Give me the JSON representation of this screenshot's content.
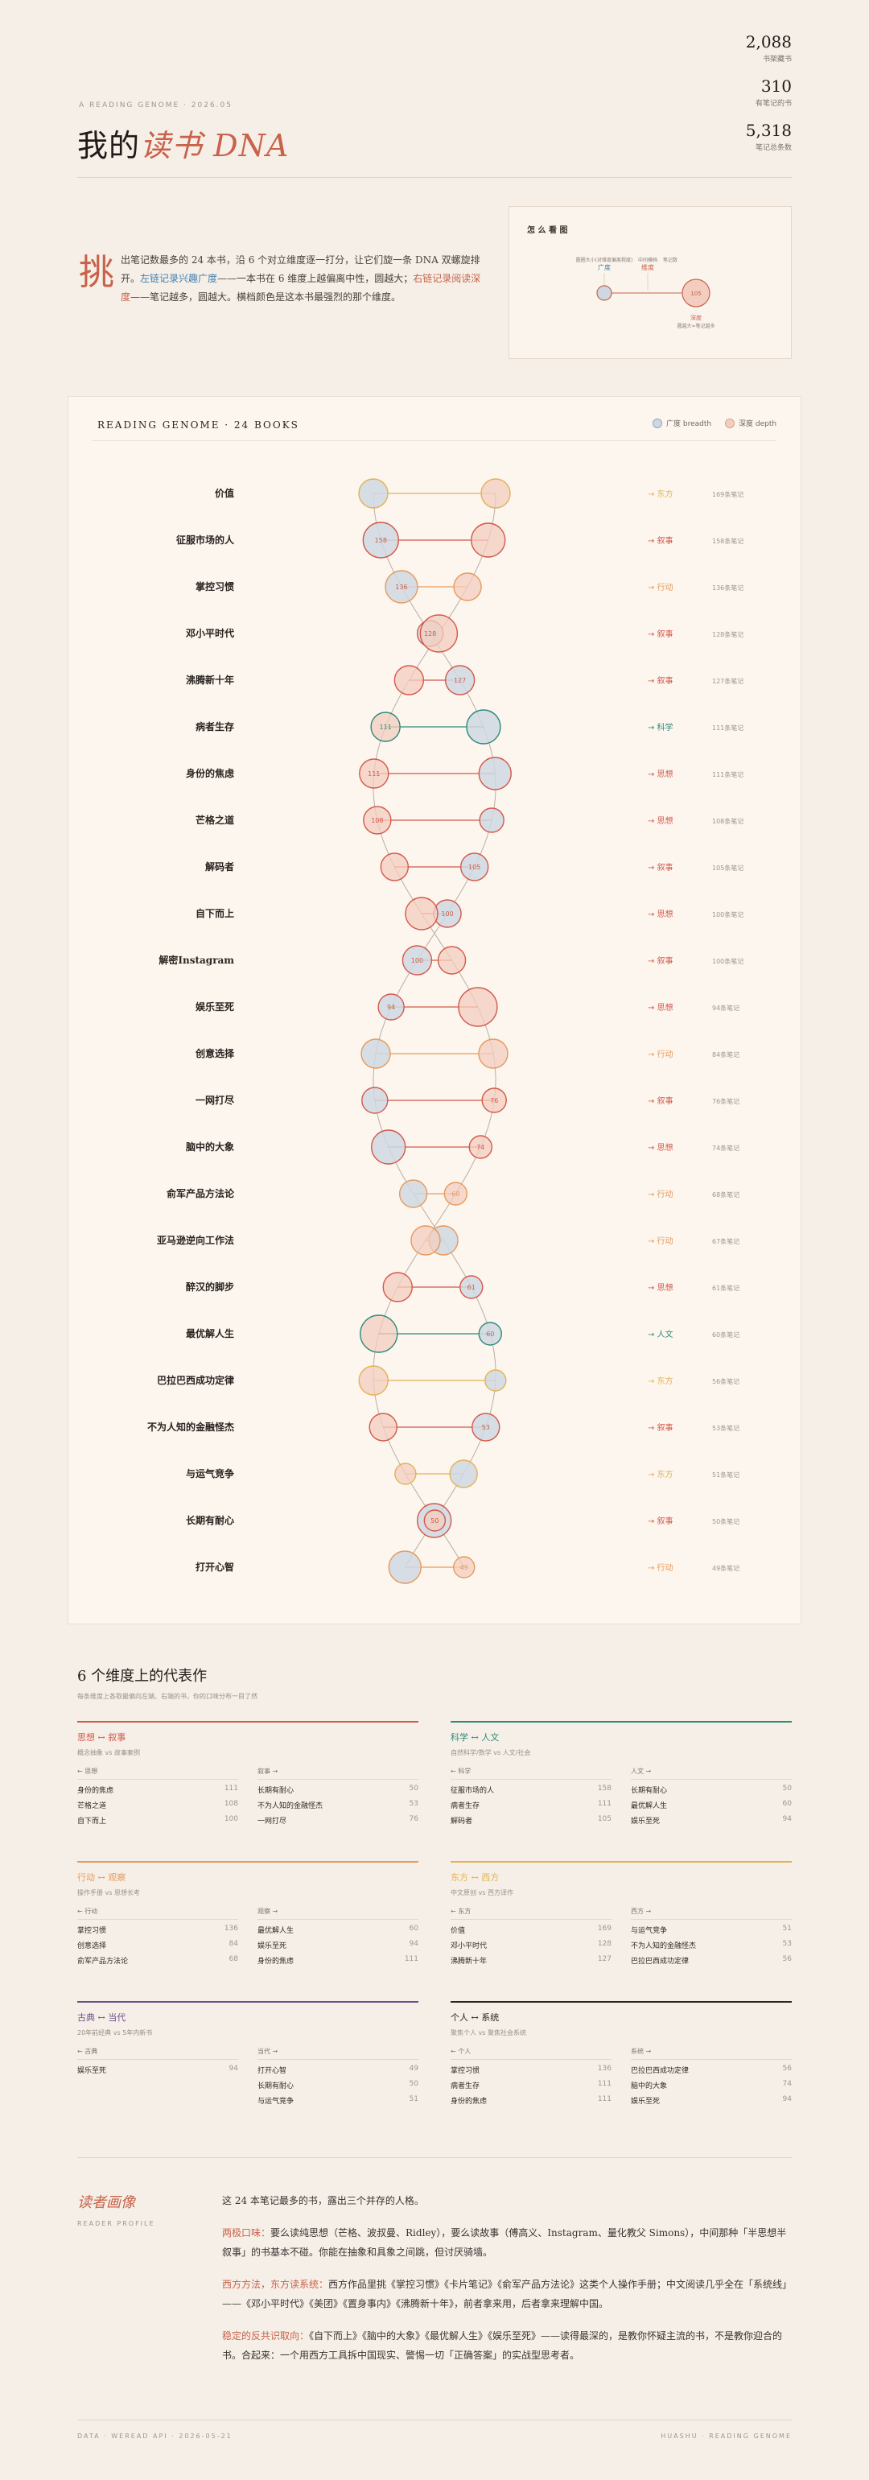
{
  "header": {
    "kicker": "A READING GENOME · 2026.05",
    "title_main": "我的",
    "title_accent": "读书",
    "title_latin": "DNA",
    "stats": [
      {
        "num": "2,088",
        "label": "书架藏书"
      },
      {
        "num": "310",
        "label": "有笔记的书"
      },
      {
        "num": "5,318",
        "label": "笔记总条数"
      }
    ]
  },
  "intro": {
    "dropcap": "挑",
    "p1": "出笔记数最多的 24 本书，沿 6 个对立维度逐一打分，让它们旋一条 DNA 双螺旋排开。",
    "blue": "左链记录兴趣广度",
    "p2": "——一本书在 6 维度上越偏离中性，圆越大；",
    "red": "右链记录阅读深度",
    "p3": "——笔记越多，圆越大。横档颜色是这本书最强烈的那个维度。"
  },
  "howto": {
    "title": "怎 么 看 图",
    "l1": "圆圈大小(对维度偏离程度)",
    "l1b": "广度",
    "l2": "中间横档",
    "l2b": "维度",
    "l3": "笔记数",
    "l4": "深度",
    "l5": "圆越大=笔记越多",
    "n": "105"
  },
  "genome": {
    "title": "READING GENOME · 24 BOOKS",
    "legend_breadth": "广度 breadth",
    "legend_depth": "深度 depth",
    "books": [
      {
        "name": "价值",
        "dim": "→ 东方",
        "notes": "169条笔记",
        "color": "#e3b253",
        "lr": 18,
        "rr": 18,
        "ln": "",
        "rn": ""
      },
      {
        "name": "征服市场的人",
        "dim": "→ 叙事",
        "notes": "158条笔记",
        "color": "#d5574a",
        "lr": 22,
        "rr": 21,
        "ln": "158",
        "rn": ""
      },
      {
        "name": "掌控习惯",
        "dim": "→ 行动",
        "notes": "136条笔记",
        "color": "#e8995a",
        "lr": 20,
        "rr": 17,
        "ln": "136",
        "rn": ""
      },
      {
        "name": "邓小平时代",
        "dim": "→ 叙事",
        "notes": "128条笔记",
        "color": "#d5574a",
        "lr": 16,
        "rr": 23,
        "ln": "128",
        "rn": ""
      },
      {
        "name": "沸腾新十年",
        "dim": "→ 叙事",
        "notes": "127条笔记",
        "color": "#d5574a",
        "lr": 18,
        "rr": 18,
        "ln": "127",
        "rn": ""
      },
      {
        "name": "病者生存",
        "dim": "→ 科学",
        "notes": "111条笔记",
        "color": "#2d8a7a",
        "lr": 21,
        "rr": 18,
        "ln": "",
        "rn": "111"
      },
      {
        "name": "身份的焦虑",
        "dim": "→ 思想",
        "notes": "111条笔记",
        "color": "#d5574a",
        "lr": 20,
        "rr": 18,
        "ln": "",
        "rn": "111"
      },
      {
        "name": "芒格之道",
        "dim": "→ 思想",
        "notes": "108条笔记",
        "color": "#d5574a",
        "lr": 15,
        "rr": 17,
        "ln": "",
        "rn": "108"
      },
      {
        "name": "解码者",
        "dim": "→ 叙事",
        "notes": "105条笔记",
        "color": "#d5574a",
        "lr": 17,
        "rr": 17,
        "ln": "105",
        "rn": ""
      },
      {
        "name": "自下而上",
        "dim": "→ 思想",
        "notes": "100条笔记",
        "color": "#d5574a",
        "lr": 17,
        "rr": 20,
        "ln": "100",
        "rn": ""
      },
      {
        "name": "解密Instagram",
        "dim": "→ 叙事",
        "notes": "100条笔记",
        "color": "#d5574a",
        "lr": 18,
        "rr": 17,
        "ln": "100",
        "rn": ""
      },
      {
        "name": "娱乐至死",
        "dim": "→ 思想",
        "notes": "94条笔记",
        "color": "#d5574a",
        "lr": 16,
        "rr": 24,
        "ln": "94",
        "rn": ""
      },
      {
        "name": "创意选择",
        "dim": "→ 行动",
        "notes": "84条笔记",
        "color": "#e8995a",
        "lr": 18,
        "rr": 18,
        "ln": "",
        "rn": ""
      },
      {
        "name": "一网打尽",
        "dim": "→ 叙事",
        "notes": "76条笔记",
        "color": "#d5574a",
        "lr": 16,
        "rr": 15,
        "ln": "",
        "rn": "76"
      },
      {
        "name": "脑中的大象",
        "dim": "→ 思想",
        "notes": "74条笔记",
        "color": "#d5574a",
        "lr": 21,
        "rr": 14,
        "ln": "",
        "rn": "74"
      },
      {
        "name": "俞军产品方法论",
        "dim": "→ 行动",
        "notes": "68条笔记",
        "color": "#e8995a",
        "lr": 17,
        "rr": 14,
        "ln": "",
        "rn": "68"
      },
      {
        "name": "亚马逊逆向工作法",
        "dim": "→ 行动",
        "notes": "67条笔记",
        "color": "#e8995a",
        "lr": 18,
        "rr": 18,
        "ln": "",
        "rn": ""
      },
      {
        "name": "醉汉的脚步",
        "dim": "→ 思想",
        "notes": "61条笔记",
        "color": "#d5574a",
        "lr": 14,
        "rr": 18,
        "ln": "61",
        "rn": ""
      },
      {
        "name": "最优解人生",
        "dim": "→ 人文",
        "notes": "60条笔记",
        "color": "#2d8a7a",
        "lr": 14,
        "rr": 23,
        "ln": "60",
        "rn": ""
      },
      {
        "name": "巴拉巴西成功定律",
        "dim": "→ 东方",
        "notes": "56条笔记",
        "color": "#e3b253",
        "lr": 13,
        "rr": 18,
        "ln": "",
        "rn": ""
      },
      {
        "name": "不为人知的金融怪杰",
        "dim": "→ 叙事",
        "notes": "53条笔记",
        "color": "#d5574a",
        "lr": 17,
        "rr": 17,
        "ln": "53",
        "rn": ""
      },
      {
        "name": "与运气竞争",
        "dim": "→ 东方",
        "notes": "51条笔记",
        "color": "#e3b253",
        "lr": 17,
        "rr": 13,
        "ln": "",
        "rn": ""
      },
      {
        "name": "长期有耐心",
        "dim": "→ 叙事",
        "notes": "50条笔记",
        "color": "#d5574a",
        "lr": 21,
        "rr": 13,
        "ln": "",
        "rn": "50"
      },
      {
        "name": "打开心智",
        "dim": "→ 行动",
        "notes": "49条笔记",
        "color": "#e8995a",
        "lr": 20,
        "rr": 13,
        "ln": "",
        "rn": "49"
      }
    ]
  },
  "dimensions": {
    "title": "6 个维度上的代表作",
    "subtitle": "每条维度上各取最偏向左端、右端的书，你的口味分布一目了然",
    "cards": [
      {
        "name": "思想 ↔ 叙事",
        "desc": "概念抽象 vs 故事案例",
        "color": "#d5574a",
        "lh": "← 思想",
        "rh": "叙事 →",
        "left": [
          [
            "身份的焦虑",
            "111"
          ],
          [
            "芒格之道",
            "108"
          ],
          [
            "自下而上",
            "100"
          ]
        ],
        "right": [
          [
            "长期有耐心",
            "50"
          ],
          [
            "不为人知的金融怪杰",
            "53"
          ],
          [
            "一网打尽",
            "76"
          ]
        ]
      },
      {
        "name": "科学 ↔ 人文",
        "desc": "自然科学/数学 vs 人文/社会",
        "color": "#2d8a7a",
        "lh": "← 科学",
        "rh": "人文 →",
        "left": [
          [
            "征服市场的人",
            "158"
          ],
          [
            "病者生存",
            "111"
          ],
          [
            "解码者",
            "105"
          ]
        ],
        "right": [
          [
            "长期有耐心",
            "50"
          ],
          [
            "最优解人生",
            "60"
          ],
          [
            "娱乐至死",
            "94"
          ]
        ]
      },
      {
        "name": "行动 ↔ 观察",
        "desc": "操作手册 vs 思想长考",
        "color": "#e8995a",
        "lh": "← 行动",
        "rh": "观察 →",
        "left": [
          [
            "掌控习惯",
            "136"
          ],
          [
            "创意选择",
            "84"
          ],
          [
            "俞军产品方法论",
            "68"
          ]
        ],
        "right": [
          [
            "最优解人生",
            "60"
          ],
          [
            "娱乐至死",
            "94"
          ],
          [
            "身份的焦虑",
            "111"
          ]
        ]
      },
      {
        "name": "东方 ↔ 西方",
        "desc": "中文原创 vs 西方译作",
        "color": "#e3b253",
        "lh": "← 东方",
        "rh": "西方 →",
        "left": [
          [
            "价值",
            "169"
          ],
          [
            "邓小平时代",
            "128"
          ],
          [
            "沸腾新十年",
            "127"
          ]
        ],
        "right": [
          [
            "与运气竞争",
            "51"
          ],
          [
            "不为人知的金融怪杰",
            "53"
          ],
          [
            "巴拉巴西成功定律",
            "56"
          ]
        ]
      },
      {
        "name": "古典 ↔ 当代",
        "desc": "20年前经典 vs 5年内新书",
        "color": "#6b4f8a",
        "lh": "← 古典",
        "rh": "当代 →",
        "left": [
          [
            "娱乐至死",
            "94"
          ]
        ],
        "right": [
          [
            "打开心智",
            "49"
          ],
          [
            "长期有耐心",
            "50"
          ],
          [
            "与运气竞争",
            "51"
          ]
        ]
      },
      {
        "name": "个人 ↔ 系统",
        "desc": "聚焦个人 vs 聚焦社会系统",
        "color": "#2a2422",
        "lh": "← 个人",
        "rh": "系统 →",
        "left": [
          [
            "掌控习惯",
            "136"
          ],
          [
            "病者生存",
            "111"
          ],
          [
            "身份的焦虑",
            "111"
          ]
        ],
        "right": [
          [
            "巴拉巴西成功定律",
            "56"
          ],
          [
            "脑中的大象",
            "74"
          ],
          [
            "娱乐至死",
            "94"
          ]
        ]
      }
    ]
  },
  "profile": {
    "title": "读者画像",
    "sub": "READER PROFILE",
    "lead": "这 24 本笔记最多的书，露出三个并存的人格。",
    "p1h": "两极口味：",
    "p1": "要么读纯思想（芒格、波叔曼、Ridley），要么读故事（傅高义、Instagram、量化教父 Simons），中间那种「半思想半叙事」的书基本不碰。你能在抽象和具象之间跳，但讨厌骑墙。",
    "p2h": "西方方法，东方读系统：",
    "p2": "西方作品里挑《掌控习惯》《卡片笔记》《俞军产品方法论》这类个人操作手册；中文阅读几乎全在「系统线」——《邓小平时代》《美团》《置身事内》《沸腾新十年》，前者拿来用，后者拿来理解中国。",
    "p3h": "稳定的反共识取向：",
    "p3": "《自下而上》《脑中的大象》《最优解人生》《娱乐至死》——读得最深的，是教你怀疑主流的书，不是教你迎合的书。合起来：一个用西方工具拆中国现实、警惕一切「正确答案」的实战型思考者。"
  },
  "footer": {
    "left": "DATA · WEREAD API · 2026-05-21",
    "right": "HUASHU · READING GENOME"
  }
}
